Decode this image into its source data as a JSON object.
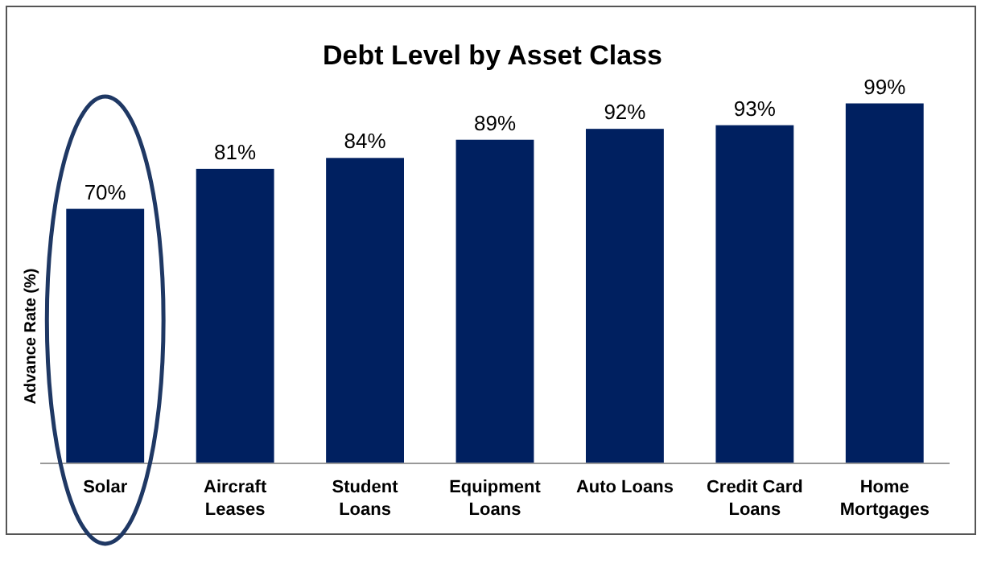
{
  "chart_data": {
    "type": "bar",
    "title": "Debt Level by Asset Class",
    "ylabel": "Advance Rate (%)",
    "categories": [
      "Solar",
      "Aircraft Leases",
      "Student Loans",
      "Equipment Loans",
      "Auto Loans",
      "Credit Card Loans",
      "Home Mortgages"
    ],
    "values": [
      70,
      81,
      84,
      89,
      92,
      93,
      99
    ],
    "value_labels": [
      "70%",
      "81%",
      "84%",
      "89%",
      "92%",
      "93%",
      "99%"
    ],
    "color": "#002060",
    "ylim": [
      0,
      100
    ],
    "tick_labels": "x"
  }
}
